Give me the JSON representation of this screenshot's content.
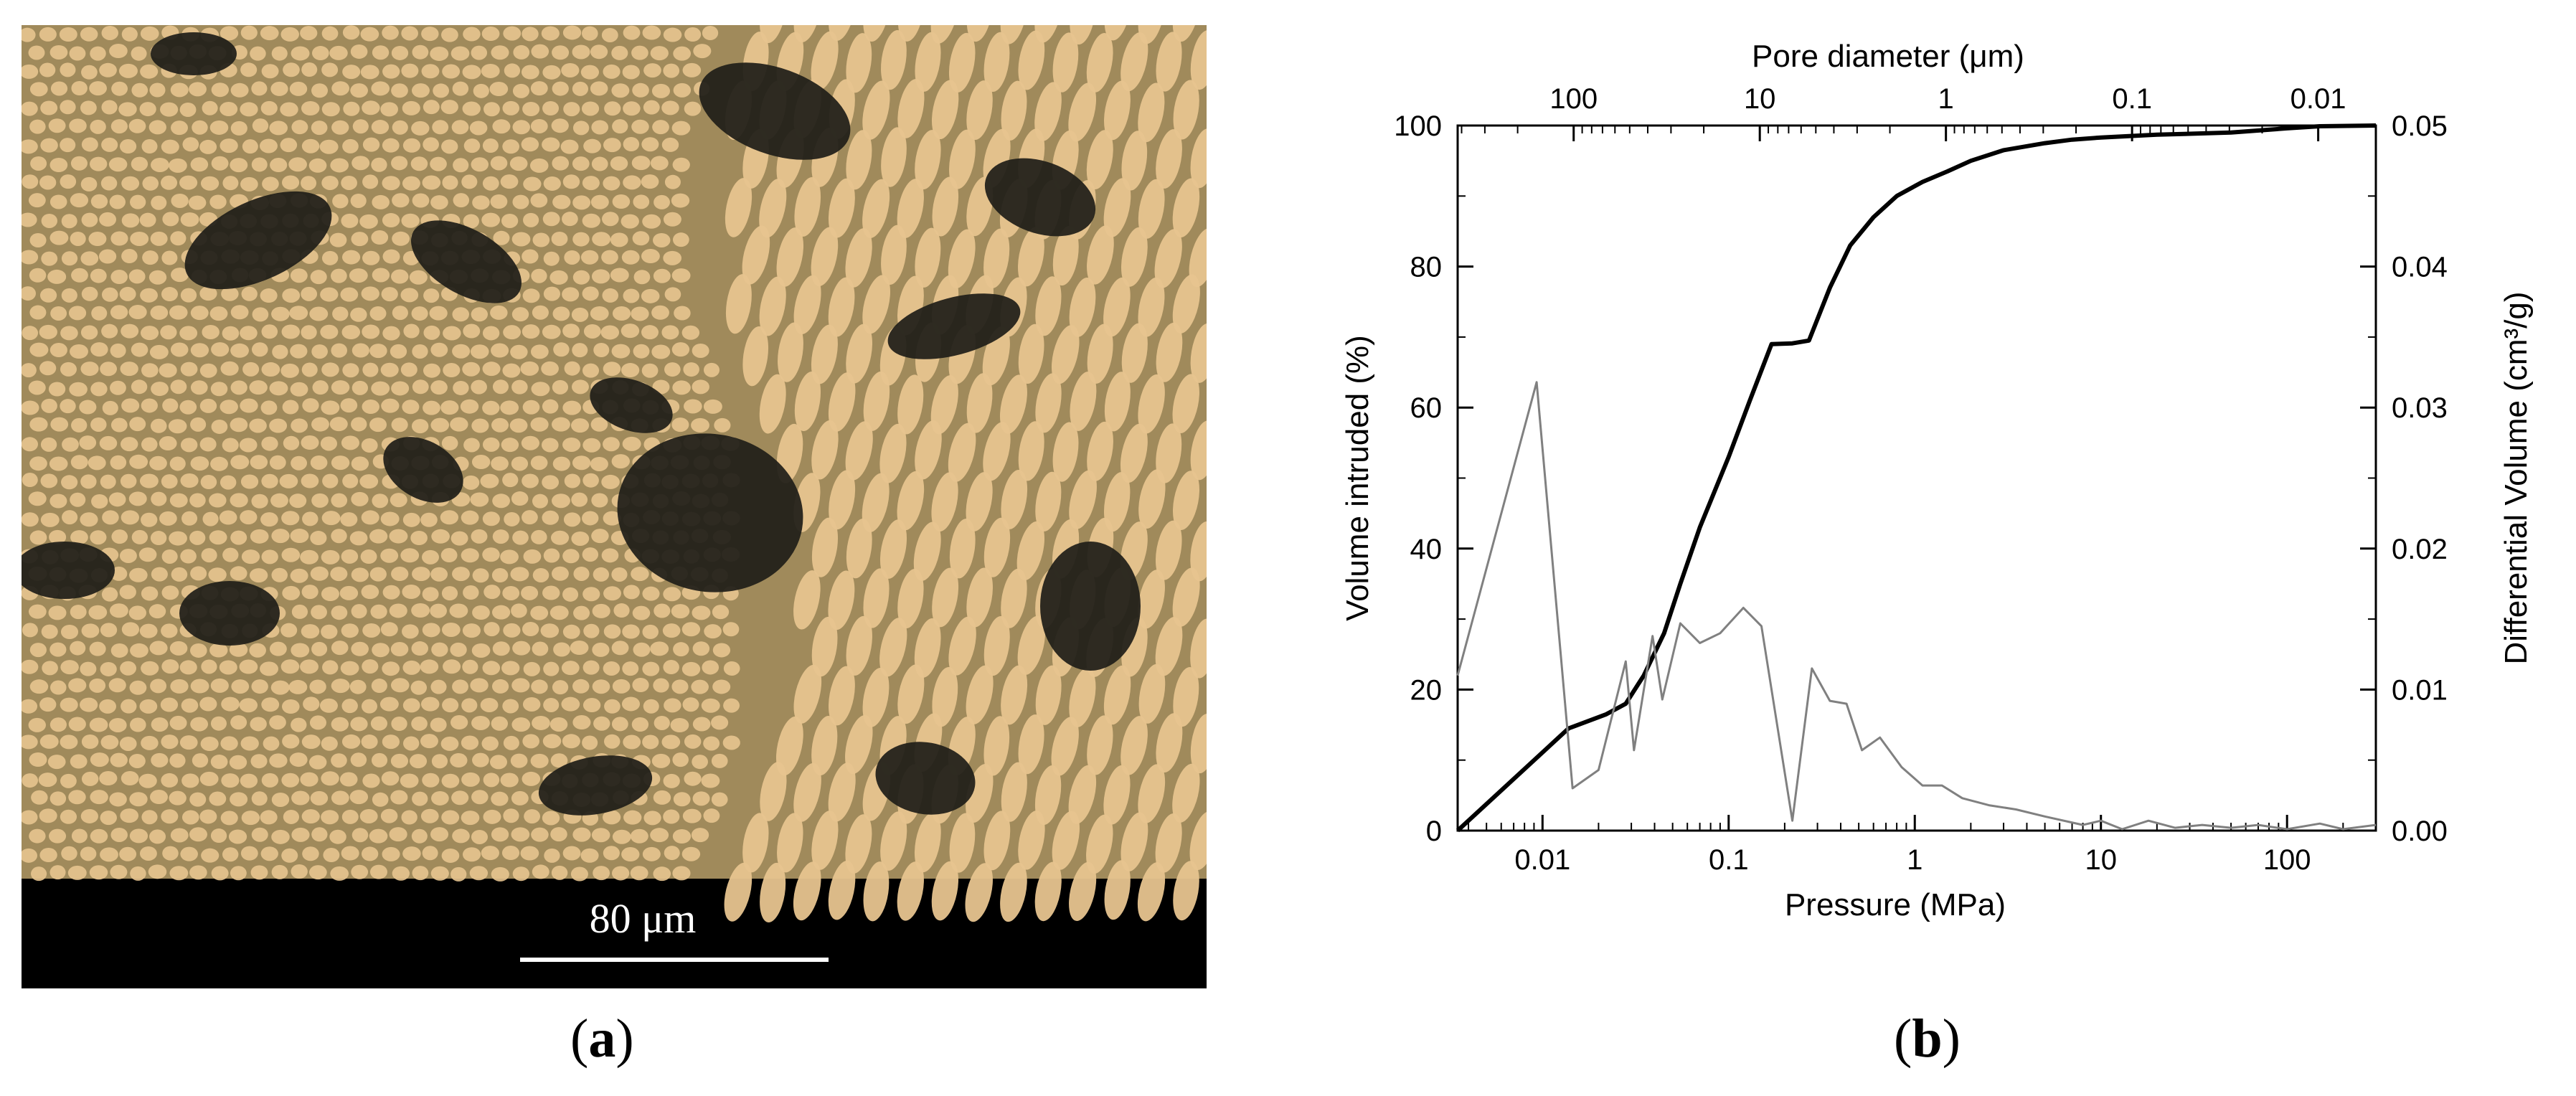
{
  "micrograph": {
    "scale_bar_label": "80 μm",
    "scale_bar_color": "#ffffff",
    "background_color": "#000000",
    "fiber_color": "#e7c48f",
    "matrix_color": "#a08a5b",
    "void_color": "#1e1d18"
  },
  "captions": {
    "a": "a",
    "b": "b"
  },
  "chart_data": {
    "type": "line",
    "x_scale": "log",
    "xlabel": "Pressure (MPa)",
    "xlim": [
      0.0035,
      300
    ],
    "x_tick_labels": [
      "0.01",
      "0.1",
      "1",
      "10",
      "100"
    ],
    "x_ticks": [
      0.01,
      0.1,
      1,
      10,
      100
    ],
    "top_axis": {
      "label": "Pore diameter (μm)",
      "tick_labels": [
        "100",
        "10",
        "1",
        "0.1",
        "0.01"
      ],
      "ticks": [
        100,
        10,
        1,
        0.1,
        0.01
      ]
    },
    "ylabel_left": "Volume intruded (%)",
    "ylim_left": [
      0,
      100
    ],
    "y_ticks_left": [
      "0",
      "20",
      "40",
      "60",
      "80",
      "100"
    ],
    "ylabel_right": "Differential Volume (cm³/g)",
    "ylim_right": [
      0,
      0.05
    ],
    "y_ticks_right": [
      "0.00",
      "0.01",
      "0.02",
      "0.03",
      "0.04",
      "0.05"
    ],
    "grid": false,
    "series": [
      {
        "axis": "left",
        "color": "#000000",
        "x": [
          0.0035,
          0.0138,
          0.022,
          0.028,
          0.035,
          0.045,
          0.055,
          0.07,
          0.1,
          0.13,
          0.17,
          0.22,
          0.27,
          0.35,
          0.45,
          0.6,
          0.8,
          1.1,
          1.5,
          2,
          3,
          5,
          7,
          10,
          20,
          50,
          100,
          150,
          300
        ],
        "y": [
          0,
          14.5,
          16.5,
          18,
          22,
          28,
          35,
          43,
          53,
          61,
          69,
          69.1,
          69.5,
          77,
          83,
          87,
          90,
          92,
          93.5,
          95,
          96.5,
          97.5,
          98,
          98.3,
          98.7,
          99,
          99.6,
          99.9,
          100
        ]
      },
      {
        "axis": "right",
        "color": "#808080",
        "x": [
          0.0035,
          0.0093,
          0.0145,
          0.02,
          0.028,
          0.031,
          0.039,
          0.044,
          0.055,
          0.07,
          0.09,
          0.12,
          0.15,
          0.22,
          0.28,
          0.35,
          0.43,
          0.52,
          0.65,
          0.85,
          1.1,
          1.4,
          1.8,
          2.5,
          3.5,
          5,
          8,
          10,
          13,
          18,
          25,
          35,
          50,
          70,
          100,
          150,
          200,
          300
        ],
        "y": [
          0.011,
          0.0318,
          0.003,
          0.0043,
          0.012,
          0.0057,
          0.0138,
          0.0093,
          0.0147,
          0.0133,
          0.014,
          0.0158,
          0.0145,
          0.0007,
          0.0115,
          0.0092,
          0.009,
          0.0057,
          0.0066,
          0.0045,
          0.0032,
          0.0032,
          0.0023,
          0.0018,
          0.0015,
          0.001,
          0.0004,
          0.0007,
          0.0001,
          0.0007,
          0.0002,
          0.0004,
          0.0002,
          0.0004,
          0.0001,
          0.0005,
          0.0001,
          0.0004
        ]
      }
    ]
  }
}
